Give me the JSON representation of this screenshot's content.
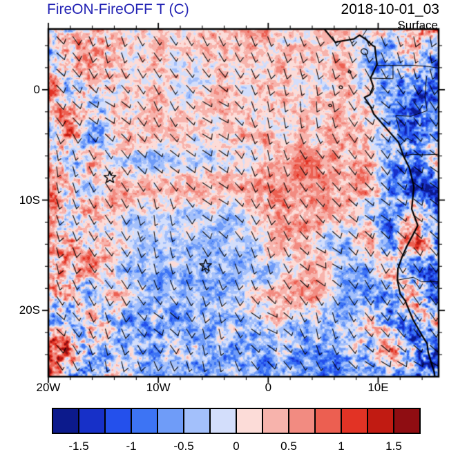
{
  "header": {
    "title": "FireON-FireOFF T (C)",
    "datetime": "2018-10-01_03",
    "level": "Surface"
  },
  "colors": {
    "title_text": "#2323b4",
    "axis_text": "#000000",
    "frame": "#000000"
  },
  "chart_data": {
    "type": "heatmap",
    "title": "FireON-FireOFF T (C)",
    "datetime_label": "2018-10-01_03",
    "level_label": "Surface",
    "units": "C",
    "overlay": "wind-barbs",
    "projection": {
      "lon_min": -20,
      "lon_max": 15.5,
      "lat_min": -26,
      "lat_max": 5.5
    },
    "x_ticks": [
      {
        "label": "20W",
        "lon": -20
      },
      {
        "label": "10W",
        "lon": -10
      },
      {
        "label": "0",
        "lon": 0
      },
      {
        "label": "10E",
        "lon": 10
      }
    ],
    "y_ticks": [
      {
        "label": "0",
        "lat": 0
      },
      {
        "label": "10S",
        "lat": -10
      },
      {
        "label": "20S",
        "lat": -20
      }
    ],
    "minor_tick_interval_deg": 2,
    "colorbar": {
      "cell_count": 14,
      "level_min": -1.75,
      "level_step": 0.25,
      "colors": [
        "#0c1a8c",
        "#1730c8",
        "#2450ec",
        "#3d74f4",
        "#6f9cf8",
        "#a3c0fb",
        "#d3defb",
        "#fcdcd8",
        "#f7b3ac",
        "#f28b81",
        "#ec5f51",
        "#e23325",
        "#c11b12",
        "#8f0d12"
      ],
      "labels": [
        "-1.5",
        "-1",
        "-0.5",
        "0",
        "0.5",
        "1",
        "1.5"
      ],
      "label_boundaries": [
        1,
        3,
        5,
        7,
        9,
        11,
        13
      ]
    },
    "field": {
      "description": "Coarse estimate of FireON-FireOFF surface temperature difference (C); rows top(5.5N) to bottom(26S), cols west(20W) to east(15.5E)",
      "lon_start": -20,
      "lon_end": 15.5,
      "lat_start": 5.5,
      "lat_end": -26,
      "ncols": 18,
      "nrows": 14,
      "values": [
        [
          0.4,
          0.2,
          0.3,
          0.3,
          0.2,
          0.3,
          0.2,
          0.3,
          0.2,
          0.3,
          0.3,
          0.2,
          0.4,
          0.3,
          -0.2,
          0.4,
          0.8,
          1.2
        ],
        [
          -0.5,
          0.4,
          0.3,
          0.2,
          0.2,
          0.2,
          0.2,
          0.2,
          0.2,
          0.2,
          0.3,
          0.2,
          0.3,
          0.5,
          -0.3,
          -0.6,
          0.3,
          -0.8
        ],
        [
          0.9,
          -0.4,
          0.2,
          0.2,
          0.15,
          0.2,
          0.2,
          0.15,
          0.2,
          0.2,
          0.2,
          0.2,
          0.2,
          0.4,
          -0.5,
          -0.9,
          -0.4,
          -1.0
        ],
        [
          0.3,
          0.6,
          -0.3,
          0.2,
          0.2,
          0.2,
          0.15,
          0.2,
          0.2,
          0.2,
          0.2,
          0.25,
          0.2,
          0.3,
          -0.2,
          -0.7,
          -1.2,
          -0.6
        ],
        [
          -0.6,
          0.8,
          -0.5,
          0.3,
          0.2,
          0.2,
          0.2,
          0.2,
          0.25,
          0.3,
          0.3,
          0.4,
          0.3,
          0.4,
          0.3,
          -0.5,
          -1.0,
          -0.8
        ],
        [
          0.7,
          -0.7,
          0.5,
          -0.3,
          -0.3,
          -0.3,
          -0.2,
          -0.3,
          -0.2,
          0.2,
          0.4,
          0.5,
          0.4,
          0.5,
          0.4,
          -0.6,
          -1.1,
          0.5
        ],
        [
          0.5,
          0.6,
          -0.4,
          0.6,
          0.5,
          0.5,
          0.5,
          0.6,
          0.5,
          0.6,
          0.6,
          0.7,
          0.6,
          0.5,
          0.4,
          -0.8,
          -1.2,
          -0.9
        ],
        [
          0.3,
          -0.4,
          0.4,
          -0.3,
          -0.3,
          -0.4,
          -0.4,
          -0.3,
          -0.3,
          0.3,
          0.5,
          0.5,
          0.4,
          0.3,
          -0.4,
          -0.9,
          0.4,
          -1.0
        ],
        [
          0.4,
          0.5,
          -0.3,
          0.3,
          -0.3,
          -0.4,
          -0.4,
          -0.4,
          -0.4,
          -0.3,
          0.3,
          0.4,
          -0.3,
          -0.5,
          0.5,
          -0.8,
          1.0,
          -0.7
        ],
        [
          0.3,
          0.4,
          0.5,
          -0.3,
          -0.4,
          -0.5,
          -0.4,
          -0.5,
          -0.4,
          -0.4,
          -0.3,
          0.3,
          0.4,
          -0.4,
          -0.6,
          0.6,
          -0.9,
          -1.2
        ],
        [
          0.4,
          0.3,
          -0.4,
          0.4,
          -0.3,
          -0.4,
          -0.5,
          -0.4,
          -0.4,
          0.4,
          0.5,
          0.5,
          0.4,
          -0.5,
          -0.7,
          -0.5,
          0.7,
          -1.0
        ],
        [
          -0.5,
          -0.6,
          0.4,
          -0.4,
          -0.5,
          -0.4,
          -0.5,
          -0.5,
          -0.4,
          -0.5,
          0.4,
          -0.4,
          -0.5,
          -0.6,
          0.5,
          -0.8,
          -1.1,
          0.6
        ],
        [
          1.2,
          0.8,
          -0.6,
          -0.5,
          -0.4,
          -0.5,
          -0.4,
          -0.5,
          -0.5,
          -0.4,
          -0.5,
          -0.5,
          -0.6,
          -0.5,
          -0.7,
          0.5,
          -0.9,
          -1.1
        ],
        [
          1.4,
          -0.7,
          -0.5,
          0.4,
          -0.5,
          -0.6,
          -0.5,
          -0.5,
          -0.6,
          -0.5,
          -0.6,
          -0.5,
          -0.7,
          -0.6,
          -0.5,
          -0.8,
          -1.0,
          -0.9
        ]
      ]
    },
    "wind": {
      "style": "barbs",
      "spacing_px": 23.5,
      "mean_direction_from_deg": 148,
      "direction_variation_deg": 70,
      "mean_speed_kt": 10,
      "speed_variation_kt": 12
    },
    "markers": [
      {
        "symbol": "star",
        "lon": -14.4,
        "lat": -7.95
      },
      {
        "symbol": "star",
        "lon": -5.7,
        "lat": -15.95
      }
    ],
    "coastline": [
      [
        5.1,
        5.5
      ],
      [
        5.6,
        4.9
      ],
      [
        6.1,
        4.3
      ],
      [
        6.9,
        4.45
      ],
      [
        7.8,
        4.6
      ],
      [
        8.3,
        4.95
      ],
      [
        8.9,
        4.55
      ],
      [
        9.5,
        4.0
      ],
      [
        9.7,
        3.9
      ],
      [
        9.8,
        3.0
      ],
      [
        9.9,
        2.3
      ],
      [
        9.3,
        1.05
      ],
      [
        9.55,
        0.3
      ],
      [
        9.25,
        -0.45
      ],
      [
        8.75,
        -0.7
      ],
      [
        9.3,
        -1.5
      ],
      [
        9.6,
        -2.2
      ],
      [
        10.65,
        -3.4
      ],
      [
        11.85,
        -4.75
      ],
      [
        12.3,
        -6.0
      ],
      [
        12.85,
        -7.1
      ],
      [
        13.25,
        -8.8
      ],
      [
        13.05,
        -10.8
      ],
      [
        13.6,
        -12.3
      ],
      [
        13.4,
        -12.7
      ],
      [
        12.6,
        -14.2
      ],
      [
        12.15,
        -15.2
      ],
      [
        11.8,
        -16.2
      ],
      [
        11.75,
        -17.25
      ],
      [
        12.0,
        -18.5
      ],
      [
        12.45,
        -19.1
      ],
      [
        13.15,
        -20.8
      ],
      [
        13.95,
        -22.2
      ],
      [
        14.45,
        -23.0
      ],
      [
        14.55,
        -23.8
      ],
      [
        14.85,
        -24.8
      ],
      [
        15.1,
        -25.6
      ],
      [
        15.15,
        -26.0
      ]
    ],
    "borders": [
      [
        [
          8.6,
          4.9
        ],
        [
          9.0,
          5.5
        ]
      ],
      [
        [
          9.8,
          2.2
        ],
        [
          11.35,
          2.2
        ],
        [
          11.35,
          1.0
        ],
        [
          9.3,
          1.05
        ]
      ],
      [
        [
          11.35,
          2.2
        ],
        [
          13.3,
          2.2
        ],
        [
          14.6,
          2.1
        ],
        [
          15.5,
          1.95
        ]
      ],
      [
        [
          14.4,
          1.2
        ],
        [
          14.25,
          -0.6
        ],
        [
          14.45,
          -1.9
        ],
        [
          13.0,
          -2.4
        ],
        [
          11.6,
          -2.35
        ],
        [
          11.95,
          -3.7
        ]
      ],
      [
        [
          12.0,
          -5.0
        ],
        [
          12.65,
          -4.4
        ],
        [
          13.1,
          -4.65
        ]
      ],
      [
        [
          12.3,
          -6.0
        ],
        [
          13.1,
          -5.85
        ],
        [
          14.0,
          -5.9
        ],
        [
          15.5,
          -5.85
        ]
      ],
      [
        [
          11.75,
          -17.25
        ],
        [
          13.2,
          -17.0
        ],
        [
          13.95,
          -17.4
        ],
        [
          15.5,
          -17.4
        ]
      ]
    ],
    "islands": [
      {
        "lon": 8.75,
        "lat": 3.45,
        "r": 5
      },
      {
        "lon": 7.4,
        "lat": 1.62,
        "r": 2
      },
      {
        "lon": 6.6,
        "lat": 0.22,
        "r": 2.5
      },
      {
        "lon": 5.63,
        "lat": -1.43,
        "r": 2
      }
    ],
    "render": {
      "seed": 11,
      "amp_large": 0.2,
      "amp_med": 0.34,
      "amp_fine": 0.27,
      "coast_boost": 1.0,
      "west_boost": 0.7,
      "south_boost": 0.45
    }
  }
}
